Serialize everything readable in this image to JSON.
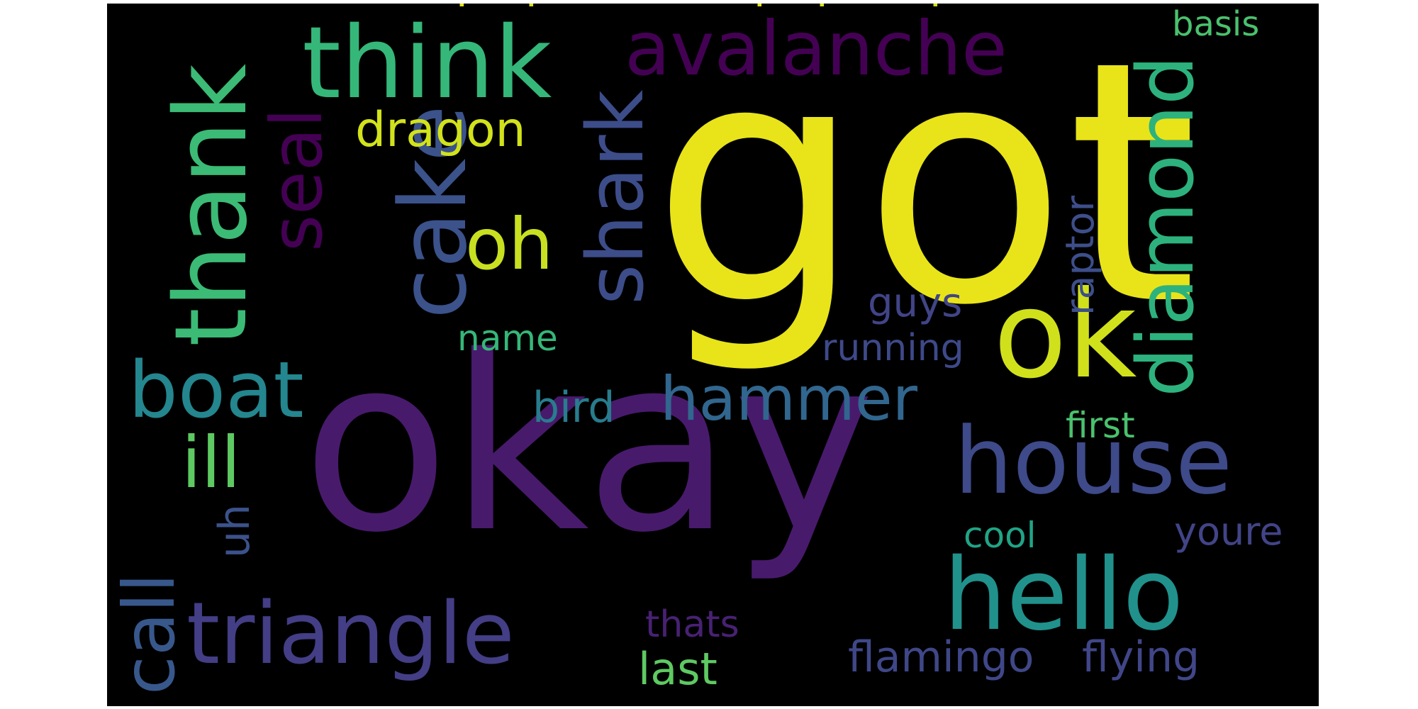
{
  "colors": {
    "background": "#000000",
    "page": "#ffffff"
  },
  "words": [
    {
      "text": "got",
      "color": "#e8e419"
    },
    {
      "text": "okay",
      "color": "#481a6c"
    },
    {
      "text": "ok",
      "color": "#d0e11c"
    },
    {
      "text": "think",
      "color": "#35b779"
    },
    {
      "text": "avalanche",
      "color": "#440154"
    },
    {
      "text": "thank",
      "color": "#3bbb75"
    },
    {
      "text": "cake",
      "color": "#3b528b"
    },
    {
      "text": "shark",
      "color": "#3d4d8a"
    },
    {
      "text": "seal",
      "color": "#440154"
    },
    {
      "text": "diamond",
      "color": "#2db27d"
    },
    {
      "text": "house",
      "color": "#3e4a89"
    },
    {
      "text": "hello",
      "color": "#21918c"
    },
    {
      "text": "triangle",
      "color": "#433e85"
    },
    {
      "text": "boat",
      "color": "#24868e"
    },
    {
      "text": "hammer",
      "color": "#31668e"
    },
    {
      "text": "oh",
      "color": "#c8e020"
    },
    {
      "text": "dragon",
      "color": "#d2e21b"
    },
    {
      "text": "ill",
      "color": "#5ec962"
    },
    {
      "text": "call",
      "color": "#38588c"
    },
    {
      "text": "uh",
      "color": "#3b528b"
    },
    {
      "text": "basis",
      "color": "#4ac16d"
    },
    {
      "text": "raptor",
      "color": "#3d4e8a"
    },
    {
      "text": "guys",
      "color": "#414487"
    },
    {
      "text": "name",
      "color": "#35b779"
    },
    {
      "text": "running",
      "color": "#3e4989"
    },
    {
      "text": "bird",
      "color": "#287c8e"
    },
    {
      "text": "first",
      "color": "#4ac16d"
    },
    {
      "text": "cool",
      "color": "#20a486"
    },
    {
      "text": "youre",
      "color": "#414487"
    },
    {
      "text": "thats",
      "color": "#482173"
    },
    {
      "text": "last",
      "color": "#5ec962"
    },
    {
      "text": "flamingo",
      "color": "#3f4788"
    },
    {
      "text": "flying",
      "color": "#404688"
    },
    {
      "text": "I",
      "color": "#e8e419"
    },
    {
      "text": "I",
      "color": "#d8e219"
    },
    {
      "text": "I",
      "color": "#e5e419"
    },
    {
      "text": "I",
      "color": "#dde318"
    },
    {
      "text": "I",
      "color": "#d0e11c"
    }
  ]
}
